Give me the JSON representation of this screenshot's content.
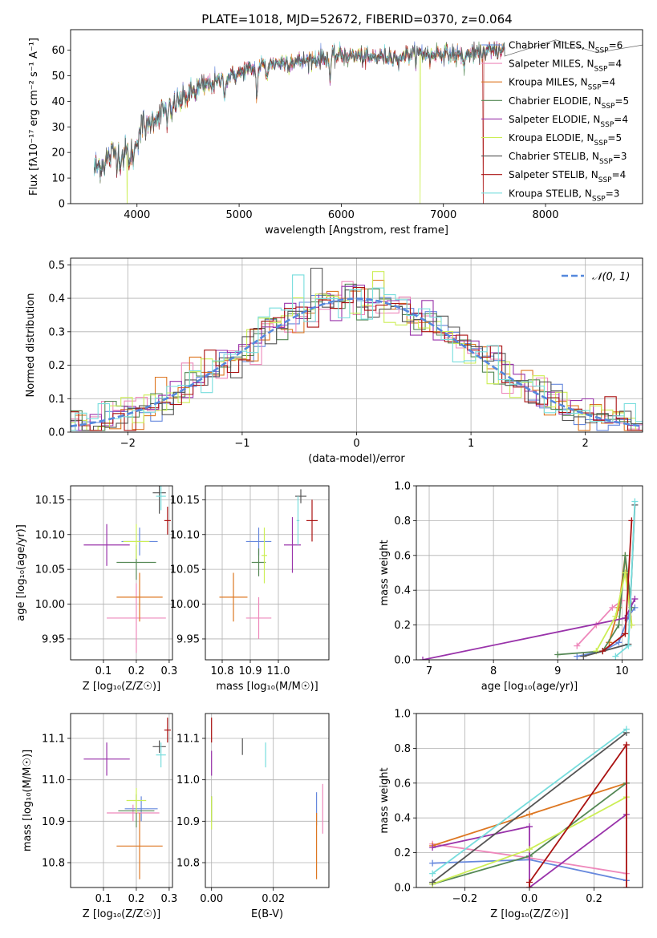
{
  "figure_title": "PLATE=1018, MJD=52672, FIBERID=0370, z=0.064",
  "series_names": [
    "Chabrier MILES, N<sub>SSP</sub>=6",
    "Salpeter MILES, N<sub>SSP</sub>=4",
    "Kroupa MILES, N<sub>SSP</sub>=4",
    "Chabrier ELODIE, N<sub>SSP</sub>=5",
    "Salpeter ELODIE, N<sub>SSP</sub>=4",
    "Kroupa ELODIE, N<sub>SSP</sub>=5",
    "Chabrier STELIB, N<sub>SSP</sub>=3",
    "Salpeter STELIB, N<sub>SSP</sub>=4",
    "Kroupa STELIB, N<sub>SSP</sub>=3"
  ],
  "series_colors": [
    "#6688dd",
    "#ee88bb",
    "#dd7722",
    "#558855",
    "#9933aa",
    "#ccee55",
    "#555555",
    "#aa1111",
    "#77dddd"
  ],
  "chart_data": [
    {
      "panel": "spectrum",
      "type": "line",
      "title": "PLATE=1018, MJD=52672, FIBERID=0370, z=0.064",
      "xlabel": "wavelength [Angstrom, rest frame]",
      "ylabel": "Flux [f_λ 10^-17 erg cm^-2 s^-1 A^-1]",
      "xlim": [
        3350,
        8950
      ],
      "ylim": [
        0,
        68
      ],
      "xticks": [
        4000,
        5000,
        6000,
        7000,
        8000
      ],
      "yticks": [
        0,
        10,
        20,
        30,
        40,
        50,
        60
      ],
      "grid": false,
      "legend": "right",
      "continuum": {
        "x": [
          3580,
          3700,
          3780,
          3850,
          3920,
          3970,
          4050,
          4150,
          4250,
          4400,
          4600,
          4800,
          5000,
          5200,
          5400,
          5700,
          6000,
          6300,
          6600,
          6900,
          7200,
          7500,
          7800,
          8100,
          8400,
          8800
        ],
        "y": [
          13,
          17,
          20,
          18,
          21,
          24,
          30,
          33,
          36,
          40,
          45,
          48,
          51,
          54,
          55,
          56,
          58,
          57,
          58,
          59,
          58,
          60,
          62,
          61,
          63,
          59
        ]
      },
      "absorption_lines": [
        {
          "x": 3934,
          "depth": 0.35
        },
        {
          "x": 3969,
          "depth": 0.3
        },
        {
          "x": 4102,
          "depth": 0.12
        },
        {
          "x": 4300,
          "depth": 0.15
        },
        {
          "x": 4340,
          "depth": 0.12
        },
        {
          "x": 4861,
          "depth": 0.12
        },
        {
          "x": 5175,
          "depth": 0.22
        },
        {
          "x": 5270,
          "depth": 0.08
        },
        {
          "x": 5892,
          "depth": 0.15
        },
        {
          "x": 6563,
          "depth": 0.08
        },
        {
          "x": 6870,
          "depth": 0.05
        },
        {
          "x": 7200,
          "depth": 0.06
        }
      ],
      "dropouts": [
        {
          "x": 3905,
          "series": 5
        },
        {
          "x": 6770,
          "series": 5
        },
        {
          "x": 7390,
          "series": 7
        }
      ],
      "extended_series": 6,
      "extended_x": [
        7600,
        8100,
        8500,
        8950
      ]
    },
    {
      "panel": "residuals",
      "type": "line",
      "xlabel": "(data-model)/error",
      "ylabel": "Normed distribution",
      "xlim": [
        -2.5,
        2.5
      ],
      "ylim": [
        0,
        0.52
      ],
      "xticks": [
        -2,
        -1,
        0,
        1,
        2
      ],
      "yticks": [
        0.0,
        0.1,
        0.2,
        0.3,
        0.4,
        0.5
      ],
      "grid": true,
      "legend": "top-right",
      "gaussian_label": "𝒩(0, 1)",
      "gaussian_color": "#5588dd",
      "bin_width": 0.1,
      "spike_bins": [
        {
          "series": 6,
          "x": -0.3,
          "y": 0.49
        },
        {
          "series": 8,
          "x": -0.5,
          "y": 0.47
        },
        {
          "series": 5,
          "x": 0.2,
          "y": 0.48
        },
        {
          "series": 1,
          "x": -0.1,
          "y": 0.45
        }
      ]
    },
    {
      "panel": "age_vs_Z",
      "type": "scatter",
      "xlabel": "Z [log10(Z/Z☉)]",
      "ylabel": "age [log10(age/yr)]",
      "xlim": [
        0.0,
        0.31
      ],
      "ylim": [
        9.92,
        10.17
      ],
      "xticks": [
        0.1,
        0.2,
        0.3
      ],
      "yticks": [
        9.95,
        10.0,
        10.05,
        10.1,
        10.15
      ],
      "grid": true,
      "points": [
        {
          "series": 0,
          "x": 0.21,
          "xerr": 0.055,
          "y": 10.09,
          "yerr": 0.02
        },
        {
          "series": 1,
          "x": 0.2,
          "xerr": 0.09,
          "y": 9.98,
          "yerr": 0.05
        },
        {
          "series": 2,
          "x": 0.21,
          "xerr": 0.07,
          "y": 10.01,
          "yerr": 0.035
        },
        {
          "series": 3,
          "x": 0.2,
          "xerr": 0.06,
          "y": 10.06,
          "yerr": 0.025
        },
        {
          "series": 4,
          "x": 0.11,
          "xerr": 0.07,
          "y": 10.085,
          "yerr": 0.03
        },
        {
          "series": 5,
          "x": 0.2,
          "xerr": 0.04,
          "y": 10.09,
          "yerr": 0.025
        },
        {
          "series": 6,
          "x": 0.27,
          "xerr": 0.02,
          "y": 10.16,
          "yerr": 0.03
        },
        {
          "series": 7,
          "x": 0.295,
          "xerr": 0.01,
          "y": 10.12,
          "yerr": 0.02
        },
        {
          "series": 8,
          "x": 0.275,
          "xerr": 0.015,
          "y": 10.155,
          "yerr": 0.02
        }
      ]
    },
    {
      "panel": "age_vs_mass",
      "type": "scatter",
      "xlabel": "mass [log10(M/M☉)]",
      "ylabel": "",
      "xlim": [
        10.74,
        11.18
      ],
      "ylim": [
        9.92,
        10.17
      ],
      "xticks": [
        10.8,
        10.9,
        11.0
      ],
      "yticks": [
        9.95,
        10.0,
        10.05,
        10.1,
        10.15
      ],
      "grid": true,
      "points": [
        {
          "series": 0,
          "x": 10.93,
          "xerr": 0.045,
          "y": 10.09,
          "yerr": 0.02
        },
        {
          "series": 1,
          "x": 10.93,
          "xerr": 0.045,
          "y": 9.98,
          "yerr": 0.03
        },
        {
          "series": 2,
          "x": 10.84,
          "xerr": 0.05,
          "y": 10.01,
          "yerr": 0.035
        },
        {
          "series": 3,
          "x": 10.93,
          "xerr": 0.025,
          "y": 10.06,
          "yerr": 0.02
        },
        {
          "series": 4,
          "x": 11.05,
          "xerr": 0.03,
          "y": 10.085,
          "yerr": 0.04
        },
        {
          "series": 5,
          "x": 10.95,
          "xerr": 0.01,
          "y": 10.07,
          "yerr": 0.04
        },
        {
          "series": 6,
          "x": 11.08,
          "xerr": 0.02,
          "y": 10.155,
          "yerr": 0.01
        },
        {
          "series": 7,
          "x": 11.12,
          "xerr": 0.02,
          "y": 10.12,
          "yerr": 0.03
        },
        {
          "series": 8,
          "x": 11.07,
          "xerr": 0.005,
          "y": 10.12,
          "yerr": 0.035
        }
      ]
    },
    {
      "panel": "mass_weight_vs_age",
      "type": "line",
      "xlabel": "age [log10(age/yr)]",
      "ylabel": "mass weight",
      "xlim": [
        6.8,
        10.32
      ],
      "ylim": [
        0,
        1.0
      ],
      "xticks": [
        7,
        8,
        9,
        10
      ],
      "yticks": [
        0.0,
        0.2,
        0.4,
        0.6,
        0.8,
        1.0
      ],
      "grid": true,
      "series": [
        {
          "series": 0,
          "x": [
            9.3,
            9.7,
            9.95,
            10.1,
            10.2
          ],
          "y": [
            0.02,
            0.05,
            0.1,
            0.25,
            0.3
          ]
        },
        {
          "series": 1,
          "x": [
            9.3,
            9.6,
            9.85,
            10.0
          ],
          "y": [
            0.08,
            0.2,
            0.3,
            0.34
          ]
        },
        {
          "series": 2,
          "x": [
            9.8,
            9.95,
            10.05,
            10.15
          ],
          "y": [
            0.1,
            0.3,
            0.6,
            0.2
          ]
        },
        {
          "series": 3,
          "x": [
            9.0,
            9.7,
            9.95,
            10.05,
            10.15
          ],
          "y": [
            0.03,
            0.05,
            0.2,
            0.6,
            0.3
          ]
        },
        {
          "series": 4,
          "x": [
            6.9,
            10.05,
            10.2
          ],
          "y": [
            0.0,
            0.24,
            0.35
          ]
        },
        {
          "series": 5,
          "x": [
            9.6,
            9.9,
            10.05,
            10.15
          ],
          "y": [
            0.05,
            0.25,
            0.5,
            0.2
          ]
        },
        {
          "series": 6,
          "x": [
            9.4,
            10.1,
            10.2
          ],
          "y": [
            0.02,
            0.09,
            0.89
          ]
        },
        {
          "series": 7,
          "x": [
            9.7,
            10.05,
            10.15
          ],
          "y": [
            0.05,
            0.15,
            0.8
          ]
        },
        {
          "series": 8,
          "x": [
            9.9,
            10.1,
            10.2
          ],
          "y": [
            0.02,
            0.08,
            0.91
          ]
        }
      ]
    },
    {
      "panel": "mass_vs_Z",
      "type": "scatter",
      "xlabel": "Z [log10(Z/Z☉)]",
      "ylabel": "mass [log10(M/M☉)]",
      "xlim": [
        0.0,
        0.31
      ],
      "ylim": [
        10.74,
        11.16
      ],
      "xticks": [
        0.1,
        0.2,
        0.3
      ],
      "yticks": [
        10.8,
        10.9,
        11.0,
        11.1
      ],
      "grid": true,
      "points": [
        {
          "series": 0,
          "x": 0.215,
          "xerr": 0.05,
          "y": 10.93,
          "yerr": 0.03
        },
        {
          "series": 1,
          "x": 0.19,
          "xerr": 0.08,
          "y": 10.92,
          "yerr": 0.02
        },
        {
          "series": 2,
          "x": 0.21,
          "xerr": 0.07,
          "y": 10.84,
          "yerr": 0.08
        },
        {
          "series": 3,
          "x": 0.2,
          "xerr": 0.055,
          "y": 10.925,
          "yerr": 0.04
        },
        {
          "series": 4,
          "x": 0.11,
          "xerr": 0.07,
          "y": 11.05,
          "yerr": 0.04
        },
        {
          "series": 5,
          "x": 0.2,
          "xerr": 0.03,
          "y": 10.95,
          "yerr": 0.03
        },
        {
          "series": 6,
          "x": 0.27,
          "xerr": 0.02,
          "y": 11.08,
          "yerr": 0.015
        },
        {
          "series": 7,
          "x": 0.295,
          "xerr": 0.01,
          "y": 11.12,
          "yerr": 0.03
        },
        {
          "series": 8,
          "x": 0.275,
          "xerr": 0.015,
          "y": 11.06,
          "yerr": 0.03
        }
      ]
    },
    {
      "panel": "mass_vs_EBV",
      "type": "scatter",
      "xlabel": "E(B-V)",
      "ylabel": "",
      "xlim": [
        -0.002,
        0.038
      ],
      "ylim": [
        10.74,
        11.16
      ],
      "xticks": [
        0.0,
        0.02
      ],
      "yticks": [
        10.8,
        10.9,
        11.0,
        11.1
      ],
      "grid": true,
      "points": [
        {
          "series": 0,
          "x": 0.034,
          "xerr": 0,
          "y": 10.93,
          "yerr": 0.04
        },
        {
          "series": 1,
          "x": 0.036,
          "xerr": 0,
          "y": 10.93,
          "yerr": 0.06
        },
        {
          "series": 2,
          "x": 0.034,
          "xerr": 0,
          "y": 10.84,
          "yerr": 0.08
        },
        {
          "series": 3,
          "x": 0.0,
          "xerr": 0,
          "y": 10.93,
          "yerr": 0.03
        },
        {
          "series": 4,
          "x": 0.0,
          "xerr": 0,
          "y": 11.04,
          "yerr": 0.03
        },
        {
          "series": 5,
          "x": 0.0,
          "xerr": 0,
          "y": 10.92,
          "yerr": 0.04
        },
        {
          "series": 6,
          "x": 0.01,
          "xerr": 0,
          "y": 11.08,
          "yerr": 0.02
        },
        {
          "series": 7,
          "x": 0.0,
          "xerr": 0,
          "y": 11.12,
          "yerr": 0.03
        },
        {
          "series": 8,
          "x": 0.0175,
          "xerr": 0,
          "y": 11.06,
          "yerr": 0.03
        }
      ]
    },
    {
      "panel": "mass_weight_vs_Z",
      "type": "line",
      "xlabel": "Z [log10(Z/Z☉)]",
      "ylabel": "mass weight",
      "xlim": [
        -0.35,
        0.35
      ],
      "ylim": [
        0,
        1.0
      ],
      "xticks": [
        -0.2,
        0.0,
        0.2
      ],
      "yticks": [
        0.0,
        0.2,
        0.4,
        0.6,
        0.8,
        1.0
      ],
      "grid": true,
      "series": [
        {
          "series": 0,
          "x": [
            -0.3,
            0.0,
            0.3
          ],
          "y": [
            0.14,
            0.16,
            0.04
          ]
        },
        {
          "series": 1,
          "x": [
            -0.3,
            0.0,
            0.3
          ],
          "y": [
            0.25,
            0.17,
            0.08
          ]
        },
        {
          "series": 2,
          "x": [
            -0.3,
            0.0,
            0.3
          ],
          "y": [
            0.24,
            0.42,
            0.6
          ]
        },
        {
          "series": 3,
          "x": [
            -0.3,
            0.0,
            0.3
          ],
          "y": [
            0.02,
            0.18,
            0.6
          ]
        },
        {
          "series": 4,
          "x": [
            -0.3,
            0.0,
            0.0,
            0.3
          ],
          "y": [
            0.23,
            0.35,
            0.0,
            0.42
          ]
        },
        {
          "series": 5,
          "x": [
            -0.3,
            0.0,
            0.3
          ],
          "y": [
            0.02,
            0.22,
            0.52
          ]
        },
        {
          "series": 6,
          "x": [
            -0.3,
            0.3
          ],
          "y": [
            0.03,
            0.89
          ]
        },
        {
          "series": 7,
          "x": [
            0.0,
            0.0,
            0.3,
            0.3
          ],
          "y": [
            0.0,
            0.03,
            0.82,
            0.0
          ]
        },
        {
          "series": 8,
          "x": [
            -0.3,
            0.3
          ],
          "y": [
            0.08,
            0.91
          ]
        }
      ]
    }
  ]
}
